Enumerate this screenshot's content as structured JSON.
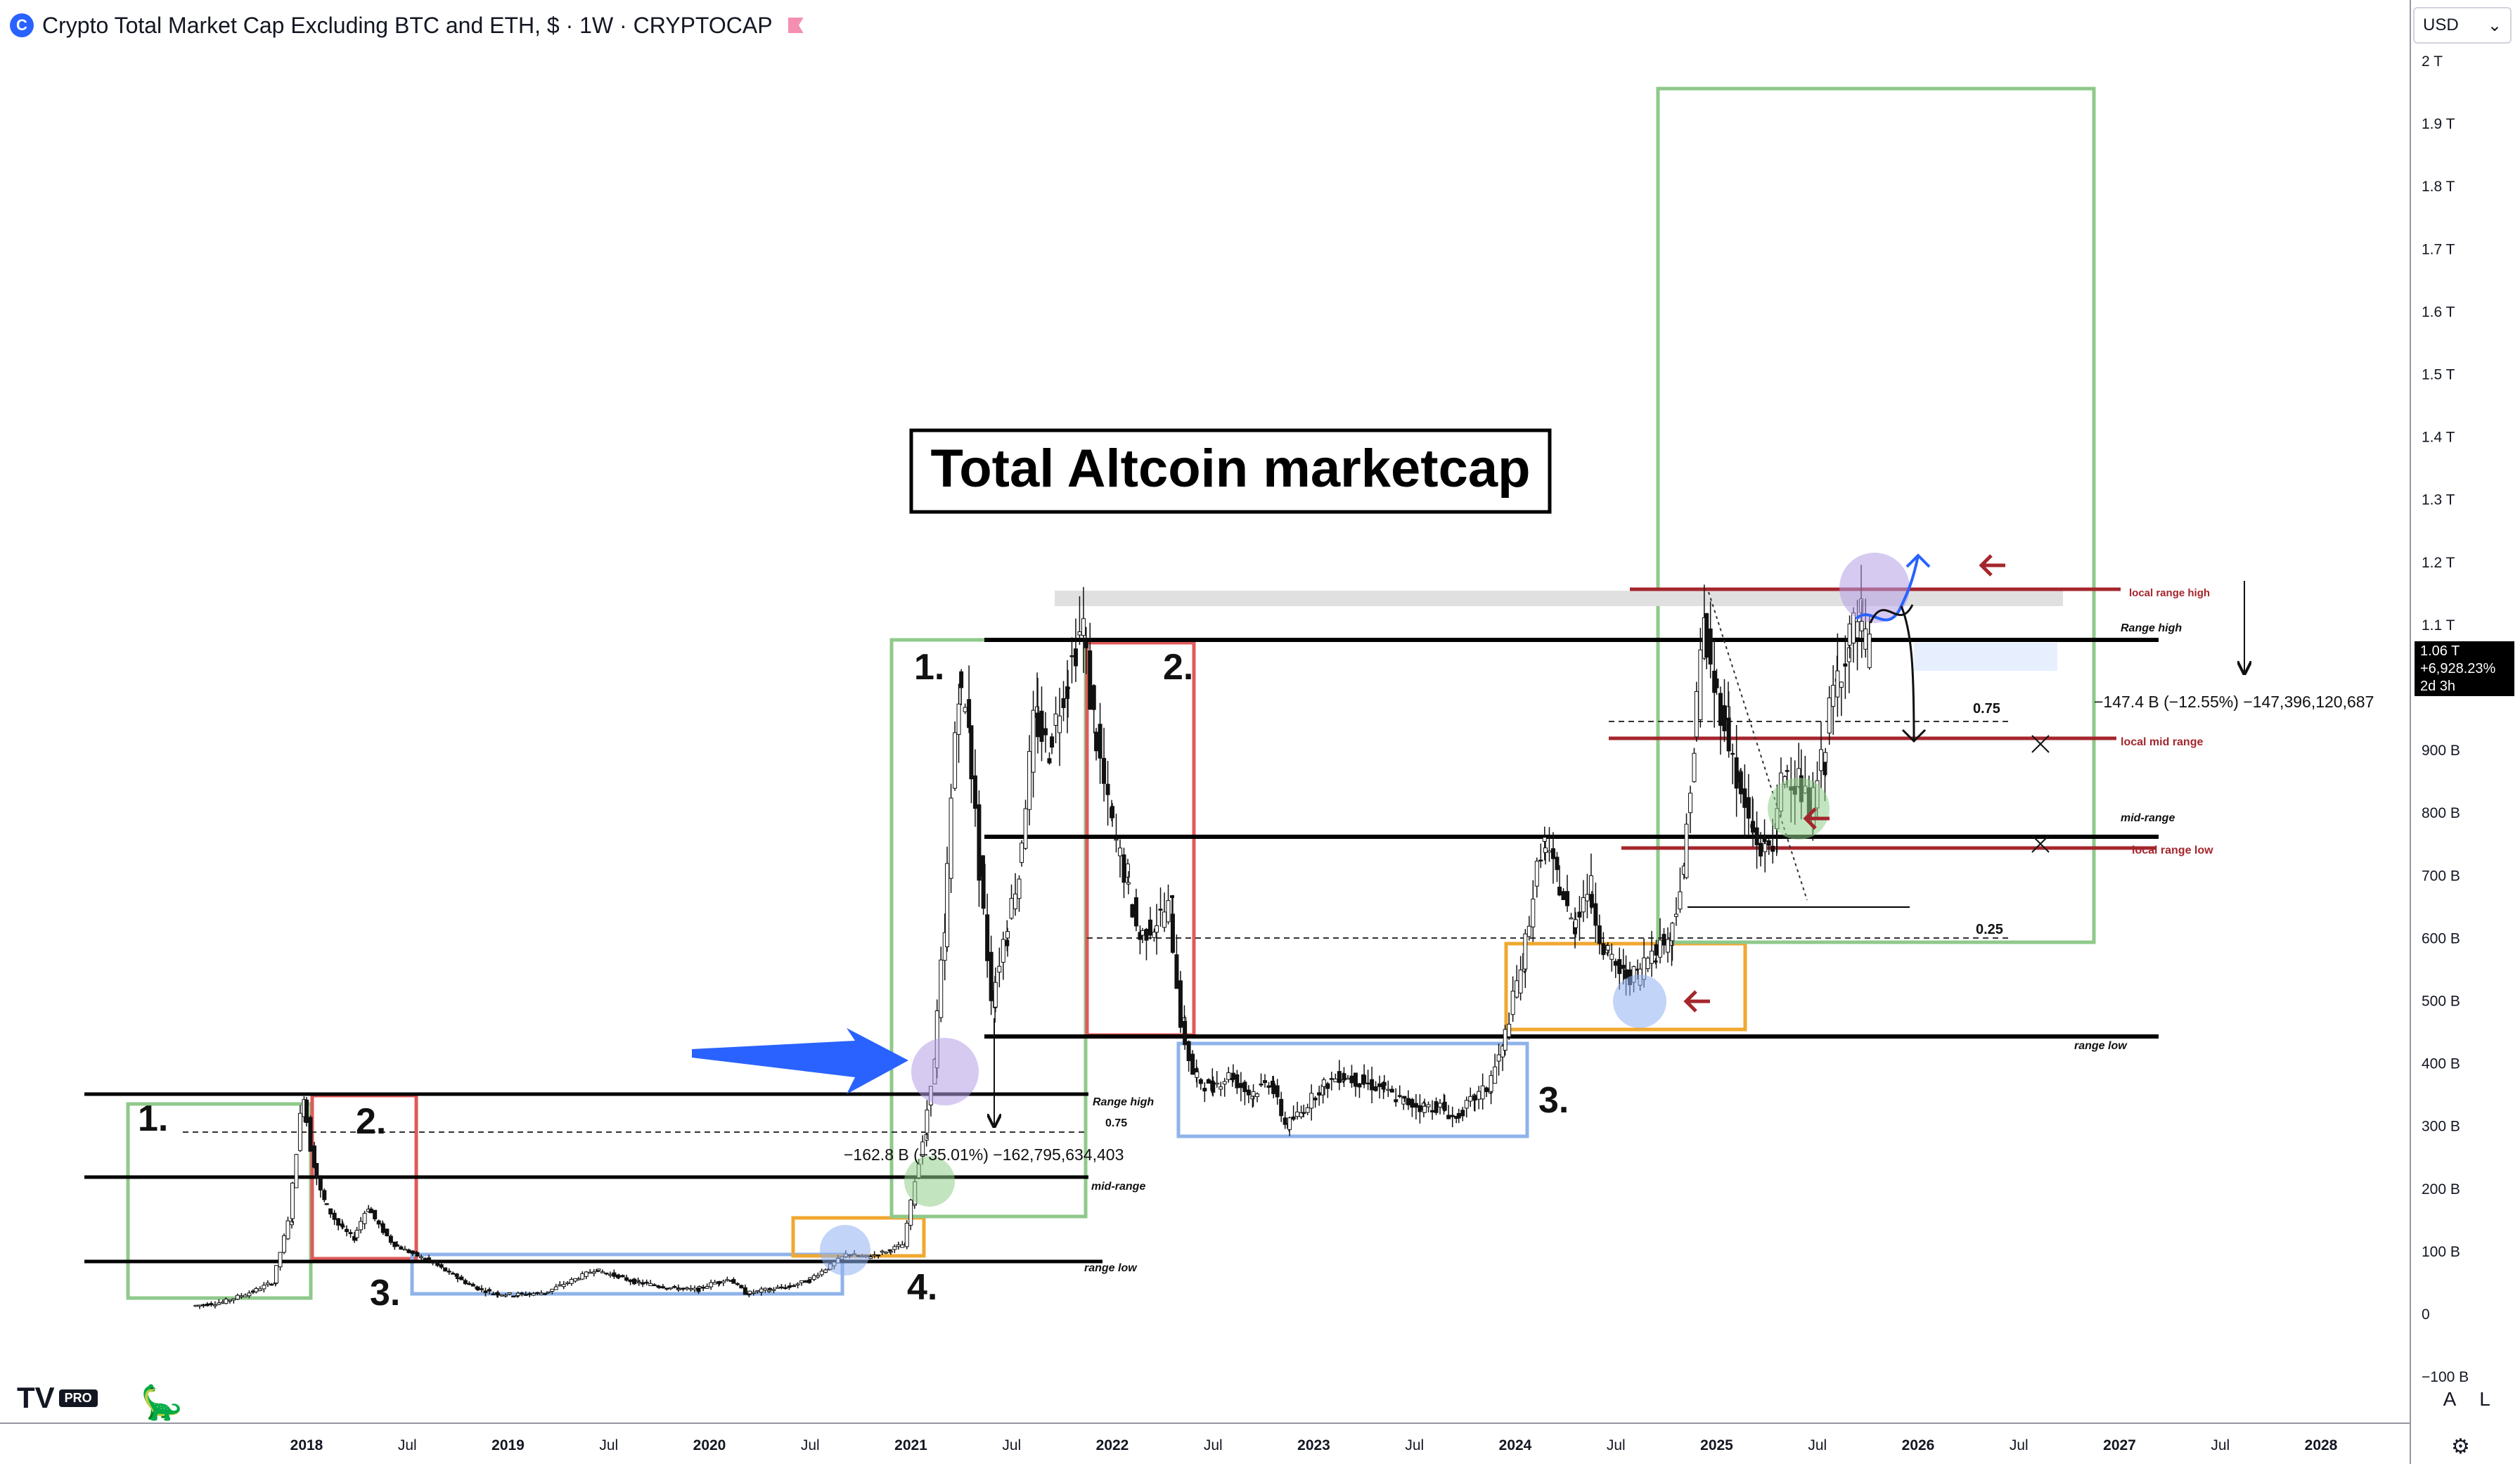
{
  "header": {
    "logo_glyph": "C",
    "title": "Crypto Total Market Cap Excluding BTC and ETH, $ · 1W · CRYPTOCAP"
  },
  "currency": {
    "label": "USD",
    "icon": "chevron-down-icon"
  },
  "price_tag": {
    "value": "1.06 T",
    "change": "+6,928.23%",
    "countdown": "2d 3h"
  },
  "bottom_controls": {
    "auto": "A",
    "log": "L",
    "settings_icon": "gear-icon"
  },
  "branding": {
    "tv": "TV",
    "pro": "PRO",
    "dino_icon": "dino-icon"
  },
  "colors": {
    "candle": "#111111",
    "green_box": "#8fc98b",
    "red_box": "#e05a5a",
    "blue_box": "#8fb3ea",
    "orange_box": "#f0a830",
    "dark_red_line": "#a4262c",
    "blue_arrow": "#2962ff",
    "purple_circle": "#b49ee6",
    "green_circle": "#8fd08a",
    "blue_circle": "#8fb0f0"
  },
  "chart_data": {
    "type": "candlestick",
    "title": "Total Altcoin marketcap",
    "y_unit": "USD",
    "ylim": [
      -100000000000,
      2000000000000
    ],
    "y_ticks": [
      "2 T",
      "1.9 T",
      "1.8 T",
      "1.7 T",
      "1.6 T",
      "1.5 T",
      "1.4 T",
      "1.3 T",
      "1.2 T",
      "1.1 T",
      "900 B",
      "800 B",
      "700 B",
      "600 B",
      "500 B",
      "400 B",
      "300 B",
      "200 B",
      "100 B",
      "0",
      "−100 B"
    ],
    "y_tick_values": [
      2000,
      1900,
      1800,
      1700,
      1600,
      1500,
      1400,
      1300,
      1200,
      1100,
      900,
      800,
      700,
      600,
      500,
      400,
      300,
      200,
      100,
      0,
      -100
    ],
    "x_ticks": [
      "2018",
      "Jul",
      "2019",
      "Jul",
      "2020",
      "Jul",
      "2021",
      "Jul",
      "2022",
      "Jul",
      "2023",
      "Jul",
      "2024",
      "Jul",
      "2025",
      "Jul",
      "2026",
      "Jul",
      "2027",
      "Jul",
      "2028"
    ],
    "x_tick_years": [
      2018.0,
      2018.5,
      2019.0,
      2019.5,
      2020.0,
      2020.5,
      2021.0,
      2021.5,
      2022.0,
      2022.5,
      2023.0,
      2023.5,
      2024.0,
      2024.5,
      2025.0,
      2025.5,
      2026.0,
      2026.5,
      2027.0,
      2027.5,
      2028.0
    ],
    "x_bold": [
      "2018",
      "2019",
      "2020",
      "2021",
      "2022",
      "2023",
      "2024",
      "2025",
      "2026",
      "2027",
      "2028"
    ],
    "price_path": [
      [
        2017.45,
        12
      ],
      [
        2017.6,
        18
      ],
      [
        2017.75,
        35
      ],
      [
        2017.85,
        50
      ],
      [
        2017.93,
        150
      ],
      [
        2018.0,
        350
      ],
      [
        2018.05,
        240
      ],
      [
        2018.1,
        180
      ],
      [
        2018.18,
        140
      ],
      [
        2018.25,
        120
      ],
      [
        2018.32,
        170
      ],
      [
        2018.38,
        140
      ],
      [
        2018.45,
        110
      ],
      [
        2018.55,
        95
      ],
      [
        2018.65,
        80
      ],
      [
        2018.75,
        60
      ],
      [
        2018.85,
        42
      ],
      [
        2018.95,
        32
      ],
      [
        2019.05,
        30
      ],
      [
        2019.2,
        33
      ],
      [
        2019.35,
        55
      ],
      [
        2019.45,
        70
      ],
      [
        2019.55,
        60
      ],
      [
        2019.65,
        50
      ],
      [
        2019.75,
        45
      ],
      [
        2019.85,
        40
      ],
      [
        2019.95,
        38
      ],
      [
        2020.05,
        50
      ],
      [
        2020.12,
        55
      ],
      [
        2020.2,
        32
      ],
      [
        2020.3,
        38
      ],
      [
        2020.4,
        42
      ],
      [
        2020.5,
        52
      ],
      [
        2020.6,
        72
      ],
      [
        2020.7,
        95
      ],
      [
        2020.8,
        90
      ],
      [
        2020.9,
        100
      ],
      [
        2020.98,
        110
      ],
      [
        2021.02,
        180
      ],
      [
        2021.08,
        280
      ],
      [
        2021.13,
        400
      ],
      [
        2021.18,
        600
      ],
      [
        2021.25,
        1000
      ],
      [
        2021.3,
        950
      ],
      [
        2021.36,
        700
      ],
      [
        2021.42,
        500
      ],
      [
        2021.48,
        600
      ],
      [
        2021.55,
        700
      ],
      [
        2021.63,
        950
      ],
      [
        2021.7,
        900
      ],
      [
        2021.78,
        1000
      ],
      [
        2021.87,
        1100
      ],
      [
        2021.92,
        950
      ],
      [
        2022.0,
        800
      ],
      [
        2022.08,
        700
      ],
      [
        2022.15,
        600
      ],
      [
        2022.22,
        620
      ],
      [
        2022.3,
        650
      ],
      [
        2022.36,
        460
      ],
      [
        2022.42,
        380
      ],
      [
        2022.5,
        360
      ],
      [
        2022.6,
        380
      ],
      [
        2022.7,
        350
      ],
      [
        2022.8,
        370
      ],
      [
        2022.88,
        300
      ],
      [
        2022.95,
        320
      ],
      [
        2023.05,
        360
      ],
      [
        2023.15,
        380
      ],
      [
        2023.25,
        370
      ],
      [
        2023.35,
        360
      ],
      [
        2023.45,
        340
      ],
      [
        2023.55,
        330
      ],
      [
        2023.65,
        330
      ],
      [
        2023.72,
        310
      ],
      [
        2023.8,
        340
      ],
      [
        2023.88,
        360
      ],
      [
        2023.95,
        420
      ],
      [
        2024.05,
        560
      ],
      [
        2024.15,
        750
      ],
      [
        2024.22,
        700
      ],
      [
        2024.3,
        620
      ],
      [
        2024.38,
        680
      ],
      [
        2024.46,
        580
      ],
      [
        2024.55,
        540
      ],
      [
        2024.62,
        540
      ],
      [
        2024.7,
        580
      ],
      [
        2024.78,
        600
      ],
      [
        2024.85,
        700
      ],
      [
        2024.9,
        900
      ],
      [
        2024.95,
        1100
      ],
      [
        2025.0,
        1000
      ],
      [
        2025.06,
        950
      ],
      [
        2025.12,
        850
      ],
      [
        2025.18,
        780
      ],
      [
        2025.24,
        740
      ],
      [
        2025.3,
        760
      ],
      [
        2025.35,
        870
      ],
      [
        2025.42,
        850
      ],
      [
        2025.48,
        800
      ],
      [
        2025.54,
        880
      ],
      [
        2025.6,
        1000
      ],
      [
        2025.66,
        1060
      ],
      [
        2025.72,
        1110
      ],
      [
        2025.76,
        1060
      ]
    ],
    "annotations": {
      "range_labels": [
        "Range high",
        "0.75",
        "mid-range",
        "range low",
        "Range high",
        "0.75",
        "local range high",
        "local mid range",
        "mid-range",
        "local range low",
        "0.25",
        "range low"
      ],
      "phase_labels": [
        "1.",
        "2.",
        "3.",
        "4.",
        "1.",
        "2.",
        "3."
      ],
      "measure_2021": "−162.8 B (−35.01%) −162,795,634,403",
      "measure_2025": "−147.4 B (−12.55%) −147,396,120,687"
    }
  }
}
